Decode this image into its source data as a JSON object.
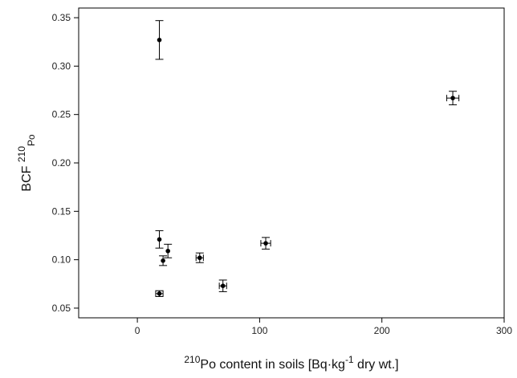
{
  "chart_data": {
    "type": "scatter",
    "xlabel": {
      "prefix": "210",
      "main": "Po content in soils [Bq·kg",
      "sup": "-1",
      "suffix": " dry wt.]"
    },
    "ylabel": {
      "main": "BCF ",
      "sup": "210",
      "sub": "Po"
    },
    "xlim": [
      -48,
      300
    ],
    "ylim": [
      0.04,
      0.36
    ],
    "xticks": [
      0,
      100,
      200,
      300
    ],
    "yticks": [
      0.05,
      0.1,
      0.15,
      0.2,
      0.25,
      0.3,
      0.35
    ],
    "grid": false,
    "points": [
      {
        "x": 18,
        "y": 0.327,
        "yerr": 0.02,
        "xerr": 0
      },
      {
        "x": 258,
        "y": 0.267,
        "yerr": 0.007,
        "xerr": 5
      },
      {
        "x": 18,
        "y": 0.121,
        "yerr": 0.009,
        "xerr": 0
      },
      {
        "x": 25,
        "y": 0.109,
        "yerr": 0.007,
        "xerr": 0
      },
      {
        "x": 21,
        "y": 0.099,
        "yerr": 0.005,
        "xerr": 0
      },
      {
        "x": 51,
        "y": 0.102,
        "yerr": 0.005,
        "xerr": 3
      },
      {
        "x": 105,
        "y": 0.117,
        "yerr": 0.006,
        "xerr": 4
      },
      {
        "x": 70,
        "y": 0.073,
        "yerr": 0.006,
        "xerr": 3
      },
      {
        "x": 18,
        "y": 0.065,
        "yerr": 0.003,
        "xerr": 3
      }
    ]
  }
}
